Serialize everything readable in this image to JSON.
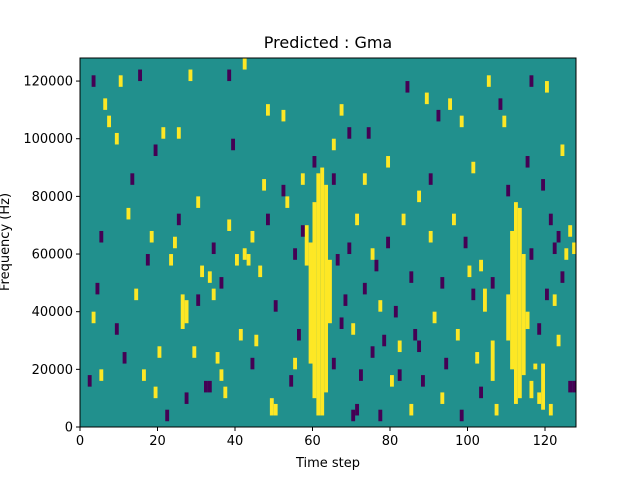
{
  "chart_data": {
    "type": "heatmap",
    "title": "Predicted : Gma",
    "xlabel": "Time step",
    "ylabel": "Frequency (Hz)",
    "xlim": [
      0,
      128
    ],
    "ylim": [
      0,
      128000
    ],
    "x_ticks": [
      0,
      20,
      40,
      60,
      80,
      100,
      120
    ],
    "y_ticks": [
      0,
      20000,
      40000,
      60000,
      80000,
      100000,
      120000
    ],
    "y_tick_labels": [
      "0",
      "20000",
      "40000",
      "60000",
      "80000",
      "100000",
      "120000"
    ],
    "grid": false,
    "colormap": "viridis",
    "background_color": "#21908d",
    "values_legend": {
      "low": -1,
      "mid": 0,
      "high": 1
    },
    "cell_width": 1,
    "cell_height": 2000,
    "cells": {
      "high": [
        [
          61,
          4000,
          88000
        ],
        [
          62,
          4000,
          90000
        ],
        [
          60,
          10000,
          78000
        ],
        [
          63,
          12000,
          84000
        ],
        [
          59,
          22000,
          64000
        ],
        [
          64,
          36000,
          58000
        ],
        [
          58,
          56000,
          70000
        ],
        [
          112,
          8000,
          78000
        ],
        [
          113,
          10000,
          76000
        ],
        [
          111,
          20000,
          68000
        ],
        [
          114,
          18000,
          60000
        ],
        [
          110,
          30000,
          46000
        ],
        [
          115,
          34000,
          40000
        ],
        [
          116,
          10000,
          16000
        ],
        [
          117,
          20000,
          22000
        ],
        [
          118,
          8000,
          12000
        ],
        [
          119,
          6000,
          22000
        ],
        [
          106,
          16000,
          30000
        ],
        [
          104,
          40000,
          48000
        ],
        [
          26,
          34000,
          46000
        ],
        [
          27,
          36000,
          44000
        ],
        [
          49,
          4000,
          10000
        ],
        [
          50,
          4000,
          8000
        ],
        [
          41,
          30000,
          34000
        ],
        [
          42,
          58000,
          62000
        ],
        [
          43,
          56000,
          60000
        ],
        [
          44,
          64000,
          68000
        ],
        [
          6,
          110000,
          114000
        ],
        [
          7,
          104000,
          108000
        ],
        [
          10,
          118000,
          122000
        ],
        [
          12,
          72000,
          76000
        ],
        [
          16,
          16000,
          20000
        ],
        [
          20,
          24000,
          28000
        ],
        [
          21,
          100000,
          104000
        ],
        [
          23,
          56000,
          60000
        ],
        [
          24,
          62000,
          66000
        ],
        [
          28,
          120000,
          124000
        ],
        [
          30,
          76000,
          80000
        ],
        [
          31,
          52000,
          56000
        ],
        [
          33,
          50000,
          54000
        ],
        [
          34,
          44000,
          48000
        ],
        [
          35,
          22000,
          26000
        ],
        [
          36,
          16000,
          20000
        ],
        [
          37,
          10000,
          14000
        ],
        [
          38,
          68000,
          72000
        ],
        [
          40,
          56000,
          60000
        ],
        [
          42,
          124000,
          128000
        ],
        [
          46,
          52000,
          56000
        ],
        [
          47,
          82000,
          86000
        ],
        [
          52,
          106000,
          110000
        ],
        [
          53,
          76000,
          80000
        ],
        [
          55,
          20000,
          24000
        ],
        [
          57,
          84000,
          88000
        ],
        [
          65,
          96000,
          100000
        ],
        [
          70,
          32000,
          36000
        ],
        [
          71,
          70000,
          74000
        ],
        [
          75,
          58000,
          62000
        ],
        [
          77,
          40000,
          44000
        ],
        [
          79,
          90000,
          94000
        ],
        [
          80,
          14000,
          18000
        ],
        [
          82,
          26000,
          30000
        ],
        [
          83,
          70000,
          74000
        ],
        [
          85,
          4000,
          8000
        ],
        [
          87,
          78000,
          82000
        ],
        [
          89,
          112000,
          116000
        ],
        [
          90,
          64000,
          68000
        ],
        [
          91,
          36000,
          40000
        ],
        [
          95,
          110000,
          114000
        ],
        [
          96,
          70000,
          74000
        ],
        [
          98,
          104000,
          108000
        ],
        [
          100,
          52000,
          56000
        ],
        [
          102,
          22000,
          26000
        ],
        [
          105,
          118000,
          122000
        ],
        [
          107,
          4000,
          8000
        ],
        [
          109,
          104000,
          108000
        ],
        [
          121,
          4000,
          8000
        ],
        [
          122,
          42000,
          46000
        ],
        [
          124,
          94000,
          98000
        ],
        [
          126,
          66000,
          70000
        ],
        [
          3,
          36000,
          40000
        ],
        [
          5,
          16000,
          20000
        ],
        [
          9,
          98000,
          102000
        ],
        [
          14,
          44000,
          48000
        ],
        [
          18,
          64000,
          68000
        ],
        [
          19,
          10000,
          14000
        ],
        [
          25,
          100000,
          104000
        ],
        [
          29,
          24000,
          28000
        ],
        [
          45,
          28000,
          32000
        ],
        [
          48,
          108000,
          112000
        ],
        [
          67,
          108000,
          112000
        ],
        [
          73,
          84000,
          88000
        ],
        [
          93,
          8000,
          12000
        ],
        [
          97,
          30000,
          34000
        ],
        [
          101,
          88000,
          92000
        ],
        [
          103,
          54000,
          58000
        ],
        [
          120,
          116000,
          120000
        ],
        [
          123,
          28000,
          32000
        ],
        [
          125,
          58000,
          62000
        ],
        [
          127,
          60000,
          64000
        ]
      ],
      "low": [
        [
          2,
          14000,
          18000
        ],
        [
          3,
          118000,
          122000
        ],
        [
          4,
          46000,
          50000
        ],
        [
          5,
          64000,
          68000
        ],
        [
          9,
          32000,
          36000
        ],
        [
          11,
          22000,
          26000
        ],
        [
          13,
          84000,
          88000
        ],
        [
          15,
          120000,
          124000
        ],
        [
          17,
          56000,
          60000
        ],
        [
          19,
          94000,
          98000
        ],
        [
          22,
          2000,
          6000
        ],
        [
          25,
          70000,
          74000
        ],
        [
          27,
          8000,
          12000
        ],
        [
          30,
          42000,
          46000
        ],
        [
          32,
          12000,
          16000
        ],
        [
          33,
          12000,
          16000
        ],
        [
          34,
          60000,
          64000
        ],
        [
          36,
          48000,
          52000
        ],
        [
          38,
          120000,
          124000
        ],
        [
          39,
          96000,
          100000
        ],
        [
          44,
          20000,
          24000
        ],
        [
          48,
          70000,
          74000
        ],
        [
          50,
          40000,
          44000
        ],
        [
          52,
          80000,
          84000
        ],
        [
          54,
          14000,
          18000
        ],
        [
          55,
          58000,
          62000
        ],
        [
          56,
          30000,
          34000
        ],
        [
          57,
          66000,
          70000
        ],
        [
          60,
          90000,
          94000
        ],
        [
          65,
          20000,
          24000
        ],
        [
          66,
          56000,
          60000
        ],
        [
          67,
          34000,
          38000
        ],
        [
          68,
          42000,
          46000
        ],
        [
          69,
          60000,
          64000
        ],
        [
          70,
          2000,
          6000
        ],
        [
          71,
          4000,
          8000
        ],
        [
          72,
          16000,
          20000
        ],
        [
          73,
          46000,
          50000
        ],
        [
          74,
          100000,
          104000
        ],
        [
          75,
          24000,
          28000
        ],
        [
          76,
          54000,
          58000
        ],
        [
          78,
          28000,
          32000
        ],
        [
          79,
          62000,
          66000
        ],
        [
          81,
          38000,
          42000
        ],
        [
          82,
          16000,
          20000
        ],
        [
          84,
          116000,
          120000
        ],
        [
          85,
          50000,
          54000
        ],
        [
          86,
          30000,
          34000
        ],
        [
          88,
          14000,
          18000
        ],
        [
          90,
          84000,
          88000
        ],
        [
          92,
          106000,
          110000
        ],
        [
          93,
          48000,
          52000
        ],
        [
          94,
          20000,
          24000
        ],
        [
          98,
          2000,
          6000
        ],
        [
          99,
          62000,
          66000
        ],
        [
          101,
          44000,
          48000
        ],
        [
          103,
          10000,
          14000
        ],
        [
          106,
          48000,
          52000
        ],
        [
          108,
          110000,
          114000
        ],
        [
          110,
          80000,
          84000
        ],
        [
          115,
          90000,
          94000
        ],
        [
          116,
          58000,
          62000
        ],
        [
          118,
          32000,
          36000
        ],
        [
          119,
          82000,
          86000
        ],
        [
          120,
          44000,
          48000
        ],
        [
          121,
          70000,
          74000
        ],
        [
          122,
          60000,
          64000
        ],
        [
          123,
          64000,
          68000
        ],
        [
          124,
          50000,
          54000
        ],
        [
          126,
          12000,
          16000
        ],
        [
          127,
          12000,
          16000
        ],
        [
          116,
          118000,
          122000
        ],
        [
          87,
          26000,
          30000
        ],
        [
          77,
          2000,
          6000
        ],
        [
          65,
          84000,
          88000
        ],
        [
          69,
          100000,
          104000
        ]
      ]
    }
  }
}
